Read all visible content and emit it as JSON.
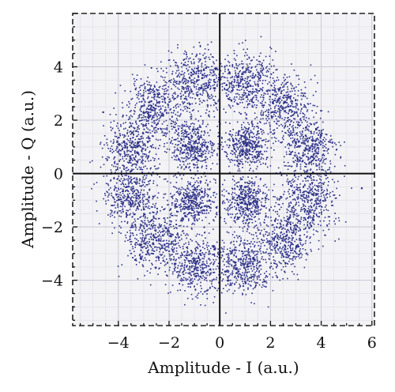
{
  "chart_data": {
    "type": "scatter",
    "title": "",
    "xlabel": "Amplitude - I (a.u.)",
    "ylabel": "Amplitude - Q (a.u.)",
    "xlim": [
      -5.8,
      6.1
    ],
    "ylim": [
      -5.7,
      6.0
    ],
    "xticks": [
      -4,
      -2,
      0,
      2,
      4,
      6
    ],
    "yticks": [
      -4,
      -2,
      0,
      2,
      4
    ],
    "xtick_labels": [
      "−4",
      "−2",
      "0",
      "2",
      "4",
      "6"
    ],
    "ytick_labels": [
      "−4",
      "−2",
      "0",
      "2",
      "4"
    ],
    "grid": true,
    "minor_grid": true,
    "legend": "none",
    "marker_color": "#2c2f86",
    "background_color": "#f3f3f6",
    "description_of_pattern": "",
    "series": [
      {
        "constellation": "16-APSK",
        "inner_ring": {
          "radius": 1.5,
          "points": 4,
          "phase_deg": 45,
          "spread_sigma": 0.45
        },
        "outer_ring": {
          "radius": 3.6,
          "points": 12,
          "phase_deg": 15,
          "spread_sigma": 0.55
        },
        "approx_point_count": 7000,
        "outliers": [
          [
            5.6,
            -0.55
          ],
          [
            -4.6,
            2.3
          ]
        ]
      }
    ]
  }
}
